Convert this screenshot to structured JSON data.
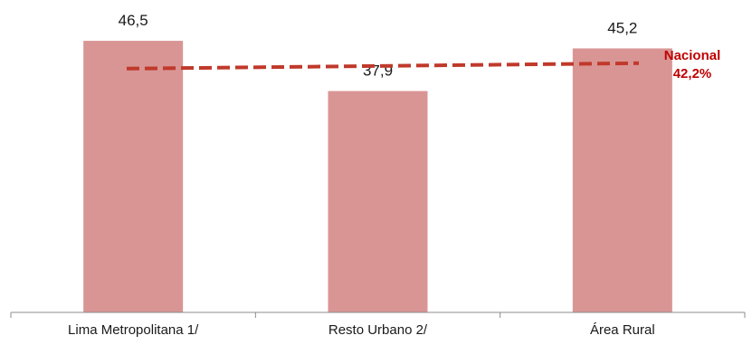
{
  "chart_data": {
    "type": "bar",
    "categories": [
      "Lima Metropolitana 1/",
      "Resto Urbano 2/",
      "Área Rural"
    ],
    "values": [
      46.5,
      37.9,
      45.2
    ],
    "value_labels": [
      "46,5",
      "37,9",
      "45,2"
    ],
    "ylim": [
      0,
      55
    ],
    "grid": false,
    "bar_color": "#d99594",
    "reference_line": {
      "name": "Nacional",
      "value": 42.2,
      "value_label": "42,2%",
      "color": "#c0392b",
      "label_color": "#c00000",
      "style": "dashed"
    }
  }
}
